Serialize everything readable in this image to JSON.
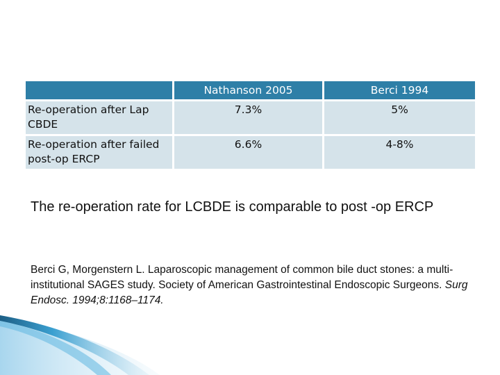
{
  "table": {
    "headers": [
      "",
      "Nathanson 2005",
      "Berci 1994"
    ],
    "rows": [
      {
        "label": "Re-operation after Lap CBDE",
        "nathanson": "7.3%",
        "berci": "5%"
      },
      {
        "label": "Re-operation after failed post-op ERCP",
        "nathanson": "6.6%",
        "berci": "4-8%"
      }
    ]
  },
  "summary": "The re-operation rate for LCBDE is comparable to post -op ERCP",
  "reference": {
    "text": "Berci G, Morgenstern L. Laparoscopic management of common bile duct stones: a multi-institutional SAGES study. Society of American Gastrointestinal Endoscopic Surgeons. ",
    "citation": "Surg Endosc. 1994;8:1168–1174."
  },
  "colors": {
    "header_bg": "#2e7fa7",
    "row_bg": "#d5e3ea",
    "accent": "#3a9fd0"
  }
}
